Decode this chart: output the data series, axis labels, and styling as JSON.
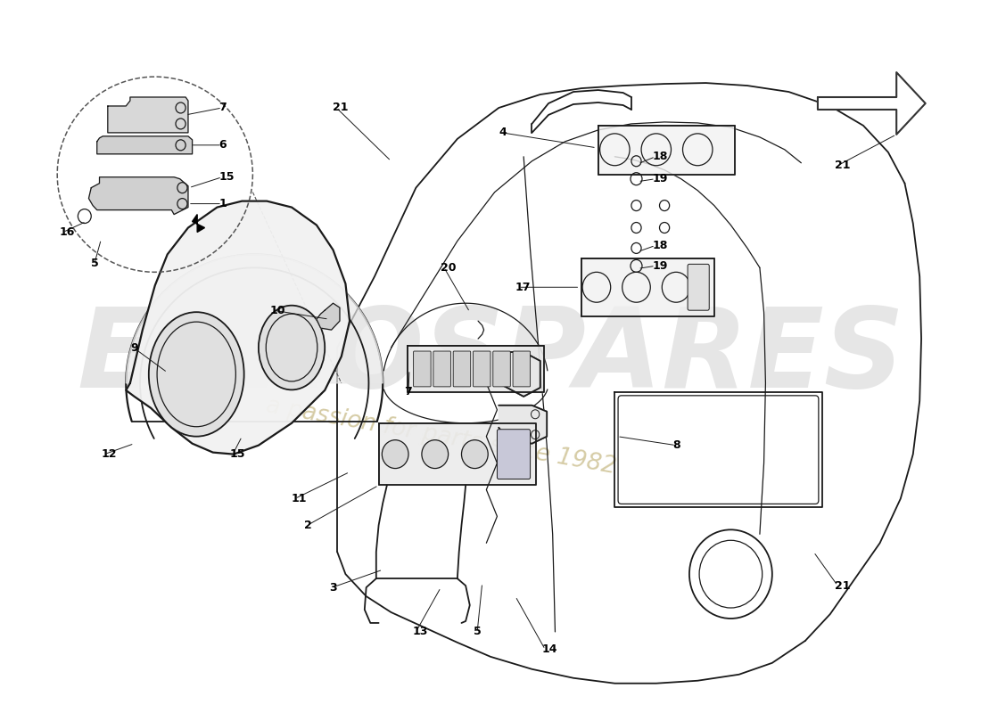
{
  "background_color": "#ffffff",
  "line_color": "#1a1a1a",
  "watermark1": "EUROSPARES",
  "watermark2": "a passion for parts since 1982",
  "wm1_color": "#c8c8c8",
  "wm2_color": "#c8bb88",
  "figsize": [
    11.0,
    8.0
  ],
  "dpi": 100
}
